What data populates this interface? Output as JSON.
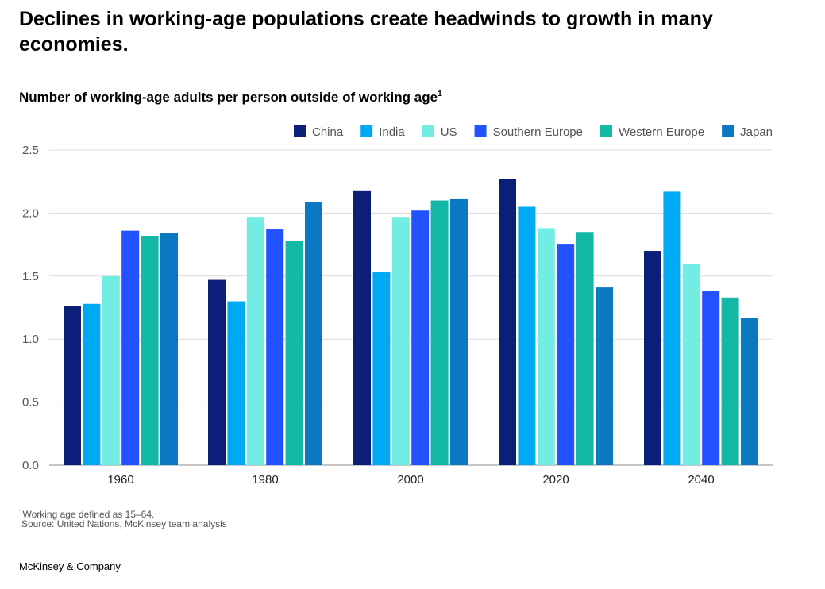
{
  "header": {
    "title": "Declines in working-age populations create headwinds to growth in many economies.",
    "subtitle": "Number of working-age adults per person outside of working age",
    "subtitle_marker": "1"
  },
  "chart_data": {
    "type": "bar",
    "categories": [
      "1960",
      "1980",
      "2000",
      "2020",
      "2040"
    ],
    "series": [
      {
        "name": "China",
        "color": "#0b1f78",
        "values": [
          1.26,
          1.47,
          2.18,
          2.27,
          1.7
        ]
      },
      {
        "name": "India",
        "color": "#00a9f4",
        "values": [
          1.28,
          1.3,
          1.53,
          2.05,
          2.17
        ]
      },
      {
        "name": "US",
        "color": "#73ede3",
        "values": [
          1.5,
          1.97,
          1.97,
          1.88,
          1.6
        ]
      },
      {
        "name": "Southern Europe",
        "color": "#2251ff",
        "values": [
          1.86,
          1.87,
          2.02,
          1.75,
          1.38
        ]
      },
      {
        "name": "Western Europe",
        "color": "#14b8a6",
        "values": [
          1.82,
          1.78,
          2.1,
          1.85,
          1.33
        ]
      },
      {
        "name": "Japan",
        "color": "#0a78c2",
        "values": [
          1.84,
          2.09,
          2.11,
          1.41,
          1.17
        ]
      }
    ],
    "yticks": [
      "0.0",
      "0.5",
      "1.0",
      "1.5",
      "2.0",
      "2.5"
    ],
    "ylim": [
      0,
      2.5
    ],
    "grid": true,
    "legend_position": "top-right",
    "title": "Number of working-age adults per person outside of working age"
  },
  "footer": {
    "footnote_marker": "1",
    "footnote": "Working age defined as 15–64.",
    "source": "Source: United Nations, McKinsey team analysis",
    "brand": "McKinsey & Company"
  }
}
